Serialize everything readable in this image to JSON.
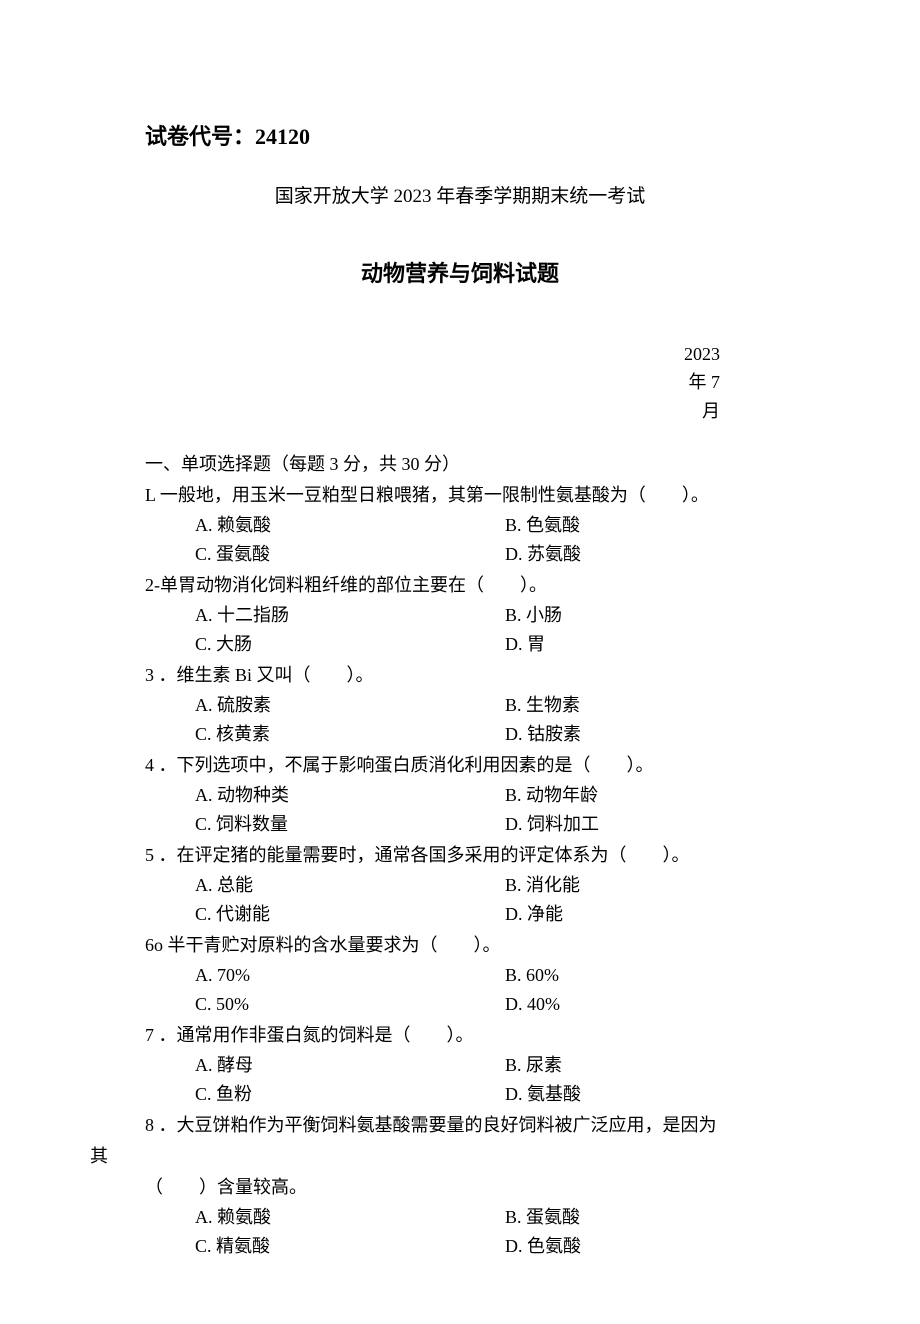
{
  "header": {
    "paper_code_label": "试卷代号：",
    "paper_code": "24120",
    "university_line": "国家开放大学 2023 年春季学期期末统一考试",
    "exam_title": "动物营养与饲料试题",
    "date_year": "2023",
    "date_month": "年 7",
    "date_suffix": "月"
  },
  "section1": {
    "title": "一、单项选择题（每题 3 分，共 30 分）"
  },
  "q1": {
    "stem": "L 一般地，用玉米一豆粕型日粮喂猪，其第一限制性氨基酸为（　　）。",
    "a": "A. 赖氨酸",
    "b": "B. 色氨酸",
    "c": "C. 蛋氨酸",
    "d": "D. 苏氨酸"
  },
  "q2": {
    "stem": "2-单胃动物消化饲料粗纤维的部位主要在（　　）。",
    "a": "A. 十二指肠",
    "b": "B. 小肠",
    "c": "C. 大肠",
    "d": "D. 胃"
  },
  "q3": {
    "stem": "3 ．维生素 Bi 又叫（　　）。",
    "a": "A. 硫胺素",
    "b": "B. 生物素",
    "c": "C. 核黄素",
    "d": "D. 钴胺素"
  },
  "q4": {
    "stem": "4 ．下列选项中，不属于影响蛋白质消化利用因素的是（　　）。",
    "a": "A. 动物种类",
    "b": "B. 动物年龄",
    "c": "C. 饲料数量",
    "d": "D. 饲料加工"
  },
  "q5": {
    "stem": "5 ．在评定猪的能量需要时，通常各国多采用的评定体系为（　　）。",
    "a": "A. 总能",
    "b": "B. 消化能",
    "c": "C. 代谢能",
    "d": "D. 净能"
  },
  "q6": {
    "stem": "6o 半干青贮对原料的含水量要求为（　　）。",
    "a": "A. 70%",
    "b": "B. 60%",
    "c": "C. 50%",
    "d": "D. 40%"
  },
  "q7": {
    "stem": "7 ．通常用作非蛋白氮的饲料是（　　）。",
    "a": "A. 酵母",
    "b": "B. 尿素",
    "c": "C. 鱼粉",
    "d": "D. 氨基酸"
  },
  "q8": {
    "stem": "8 ．大豆饼粕作为平衡饲料氨基酸需要量的良好饲料被广泛应用，是因为",
    "cont": "其",
    "fill": "（　　）含量较高。",
    "a": "A. 赖氨酸",
    "b": "B. 蛋氨酸",
    "c": "C. 精氨酸",
    "d": "D. 色氨酸"
  }
}
